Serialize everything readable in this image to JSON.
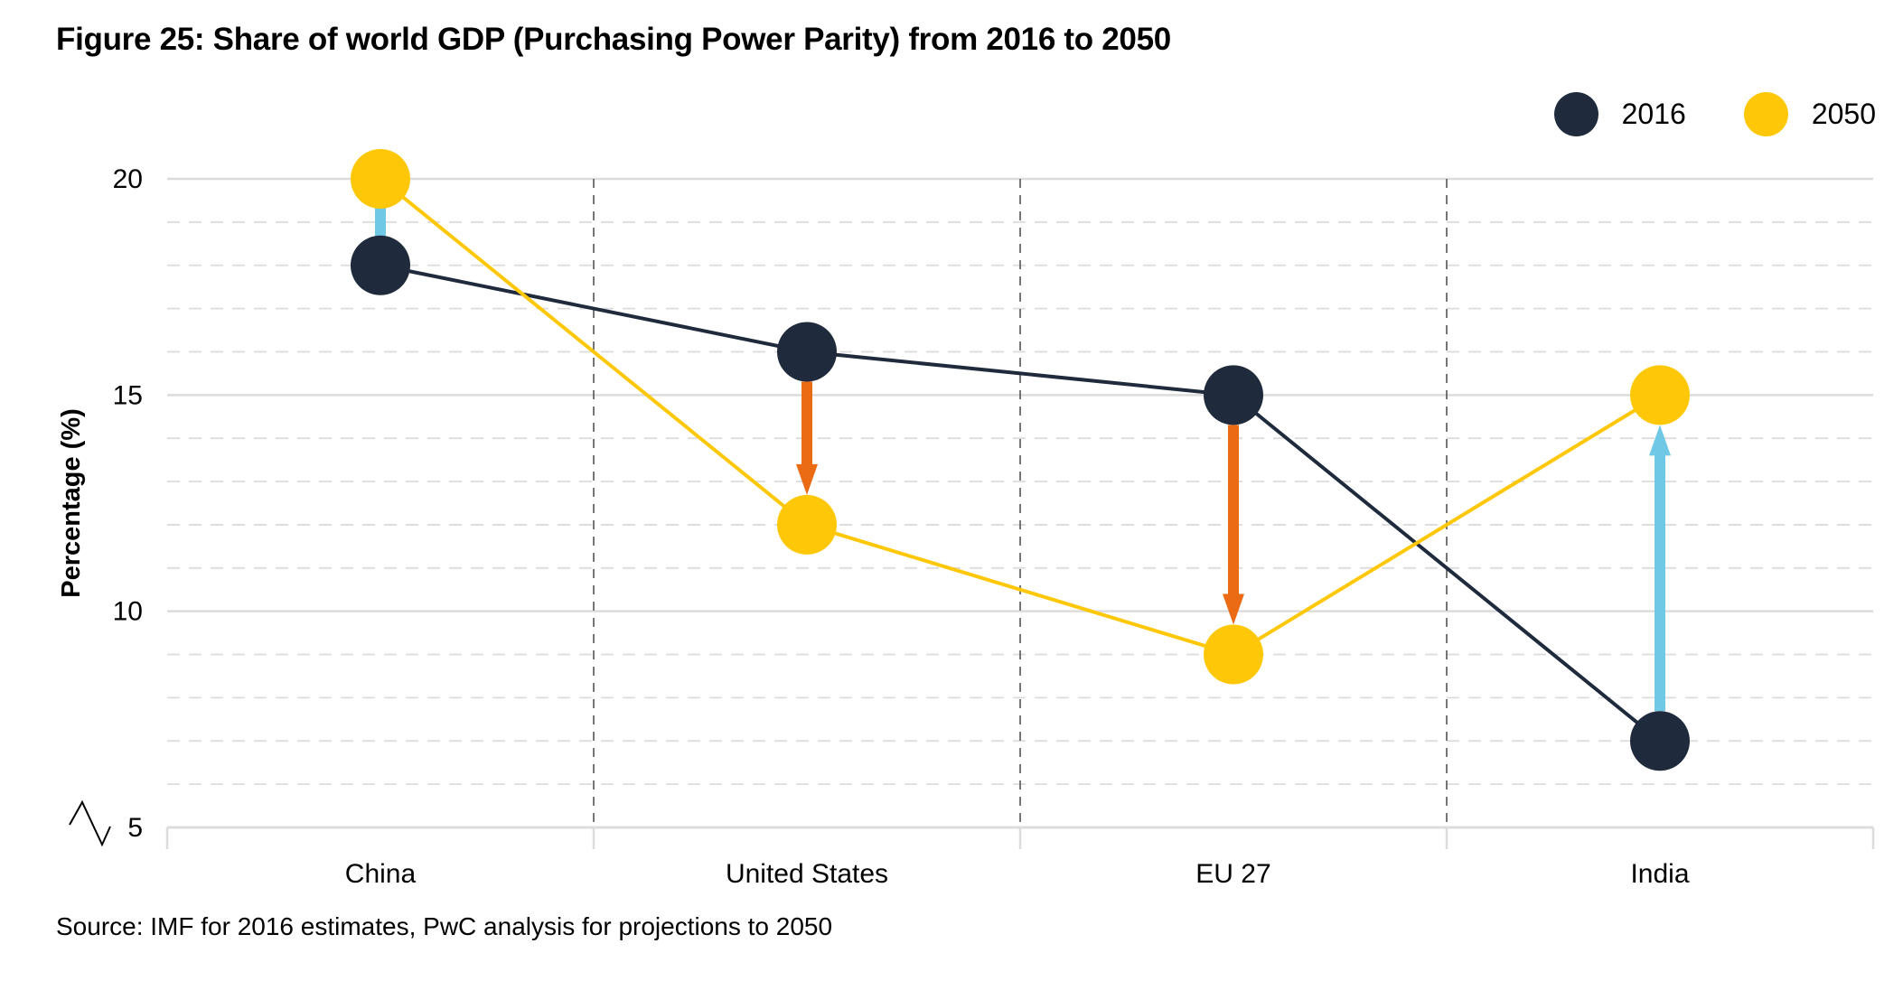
{
  "chart_data": {
    "type": "dumbbell",
    "title": "Figure 25: Share of world GDP (Purchasing Power Parity) from 2016 to 2050",
    "xlabel": "",
    "ylabel": "Percentage (%)",
    "ylim": [
      5,
      20
    ],
    "y_ticks": [
      5,
      10,
      15,
      20
    ],
    "y_minor_step": 1,
    "y_axis_break": true,
    "grid": true,
    "legend_position": "top-right",
    "categories": [
      "China",
      "United States",
      "EU 27",
      "India"
    ],
    "series": [
      {
        "name": "2016",
        "color": "#1F2B3C",
        "values": [
          18,
          16,
          15,
          7
        ]
      },
      {
        "name": "2050",
        "color": "#FEC808",
        "values": [
          20,
          12,
          9,
          15
        ]
      }
    ],
    "arrow_colors": {
      "increase": "#6FC8E6",
      "decrease": "#EB6A14"
    },
    "source": "Source: IMF for 2016 estimates, PwC analysis for projections to 2050"
  },
  "colors": {
    "gridline": "#DCDCDC",
    "separator": "#555555",
    "text": "#000000"
  }
}
